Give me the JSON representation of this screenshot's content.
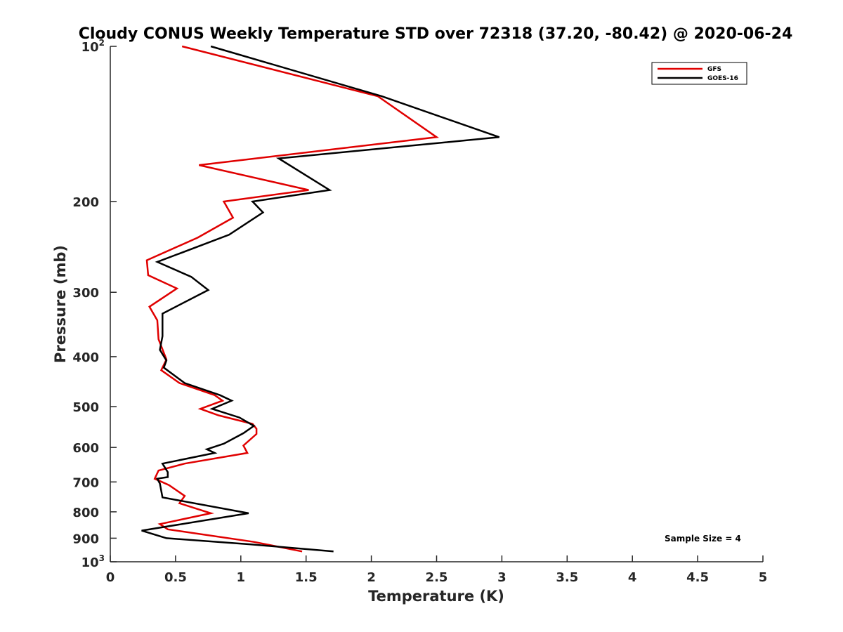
{
  "chart_data": {
    "type": "line",
    "title": "Cloudy CONUS Weekly Temperature STD over 72318 (37.20, -80.42) @ 2020-06-24",
    "xlabel": "Temperature (K)",
    "ylabel": "Pressure (mb)",
    "xlim": [
      0,
      5
    ],
    "ylim": [
      100,
      1000
    ],
    "yscale": "log",
    "y_reversed": true,
    "grid": false,
    "legend_position": "top-right",
    "x_ticks": [
      {
        "value": 0,
        "label": "0"
      },
      {
        "value": 0.5,
        "label": "0.5"
      },
      {
        "value": 1,
        "label": "1"
      },
      {
        "value": 1.5,
        "label": "1.5"
      },
      {
        "value": 2,
        "label": "2"
      },
      {
        "value": 2.5,
        "label": "2.5"
      },
      {
        "value": 3,
        "label": "3"
      },
      {
        "value": 3.5,
        "label": "3.5"
      },
      {
        "value": 4,
        "label": "4"
      },
      {
        "value": 4.5,
        "label": "4.5"
      },
      {
        "value": 5,
        "label": "5"
      }
    ],
    "y_ticks": [
      {
        "value": 100,
        "base": "10",
        "exp": "2"
      },
      {
        "value": 200,
        "label": "200"
      },
      {
        "value": 300,
        "label": "300"
      },
      {
        "value": 400,
        "label": "400"
      },
      {
        "value": 500,
        "label": "500"
      },
      {
        "value": 600,
        "label": "600"
      },
      {
        "value": 700,
        "label": "700"
      },
      {
        "value": 800,
        "label": "800"
      },
      {
        "value": 900,
        "label": "900"
      },
      {
        "value": 1000,
        "base": "10",
        "exp": "3"
      }
    ],
    "series": [
      {
        "name": "GFS",
        "color": "#e00000",
        "points": [
          [
            0.55,
            100
          ],
          [
            2.05,
            125
          ],
          [
            2.5,
            150
          ],
          [
            0.68,
            170
          ],
          [
            1.52,
            190
          ],
          [
            0.87,
            200
          ],
          [
            0.94,
            215
          ],
          [
            0.67,
            235
          ],
          [
            0.28,
            260
          ],
          [
            0.29,
            278
          ],
          [
            0.51,
            295
          ],
          [
            0.3,
            320
          ],
          [
            0.36,
            340
          ],
          [
            0.37,
            370
          ],
          [
            0.43,
            405
          ],
          [
            0.39,
            425
          ],
          [
            0.53,
            450
          ],
          [
            0.8,
            475
          ],
          [
            0.86,
            487
          ],
          [
            0.69,
            505
          ],
          [
            0.83,
            520
          ],
          [
            1.09,
            540
          ],
          [
            1.12,
            552
          ],
          [
            1.12,
            565
          ],
          [
            1.02,
            595
          ],
          [
            1.05,
            615
          ],
          [
            0.57,
            645
          ],
          [
            0.37,
            665
          ],
          [
            0.34,
            690
          ],
          [
            0.45,
            710
          ],
          [
            0.57,
            745
          ],
          [
            0.53,
            770
          ],
          [
            0.77,
            805
          ],
          [
            0.38,
            845
          ],
          [
            0.44,
            865
          ],
          [
            1.1,
            915
          ],
          [
            1.47,
            955
          ]
        ]
      },
      {
        "name": "GOES-16",
        "color": "#000000",
        "points": [
          [
            0.77,
            100
          ],
          [
            2.08,
            125
          ],
          [
            2.98,
            150
          ],
          [
            1.29,
            165
          ],
          [
            1.68,
            190
          ],
          [
            1.09,
            200
          ],
          [
            1.17,
            210
          ],
          [
            0.91,
            232
          ],
          [
            0.36,
            262
          ],
          [
            0.62,
            280
          ],
          [
            0.75,
            297
          ],
          [
            0.4,
            330
          ],
          [
            0.4,
            365
          ],
          [
            0.38,
            388
          ],
          [
            0.43,
            407
          ],
          [
            0.41,
            420
          ],
          [
            0.57,
            450
          ],
          [
            0.84,
            475
          ],
          [
            0.93,
            487
          ],
          [
            0.78,
            505
          ],
          [
            0.99,
            525
          ],
          [
            1.1,
            545
          ],
          [
            1.02,
            563
          ],
          [
            0.87,
            590
          ],
          [
            0.74,
            605
          ],
          [
            0.8,
            615
          ],
          [
            0.4,
            645
          ],
          [
            0.44,
            670
          ],
          [
            0.44,
            685
          ],
          [
            0.36,
            690
          ],
          [
            0.38,
            705
          ],
          [
            0.4,
            750
          ],
          [
            1.06,
            805
          ],
          [
            0.24,
            870
          ],
          [
            0.43,
            900
          ],
          [
            1.07,
            925
          ],
          [
            1.71,
            955
          ]
        ]
      }
    ],
    "annotation": "Sample Size = 4"
  }
}
